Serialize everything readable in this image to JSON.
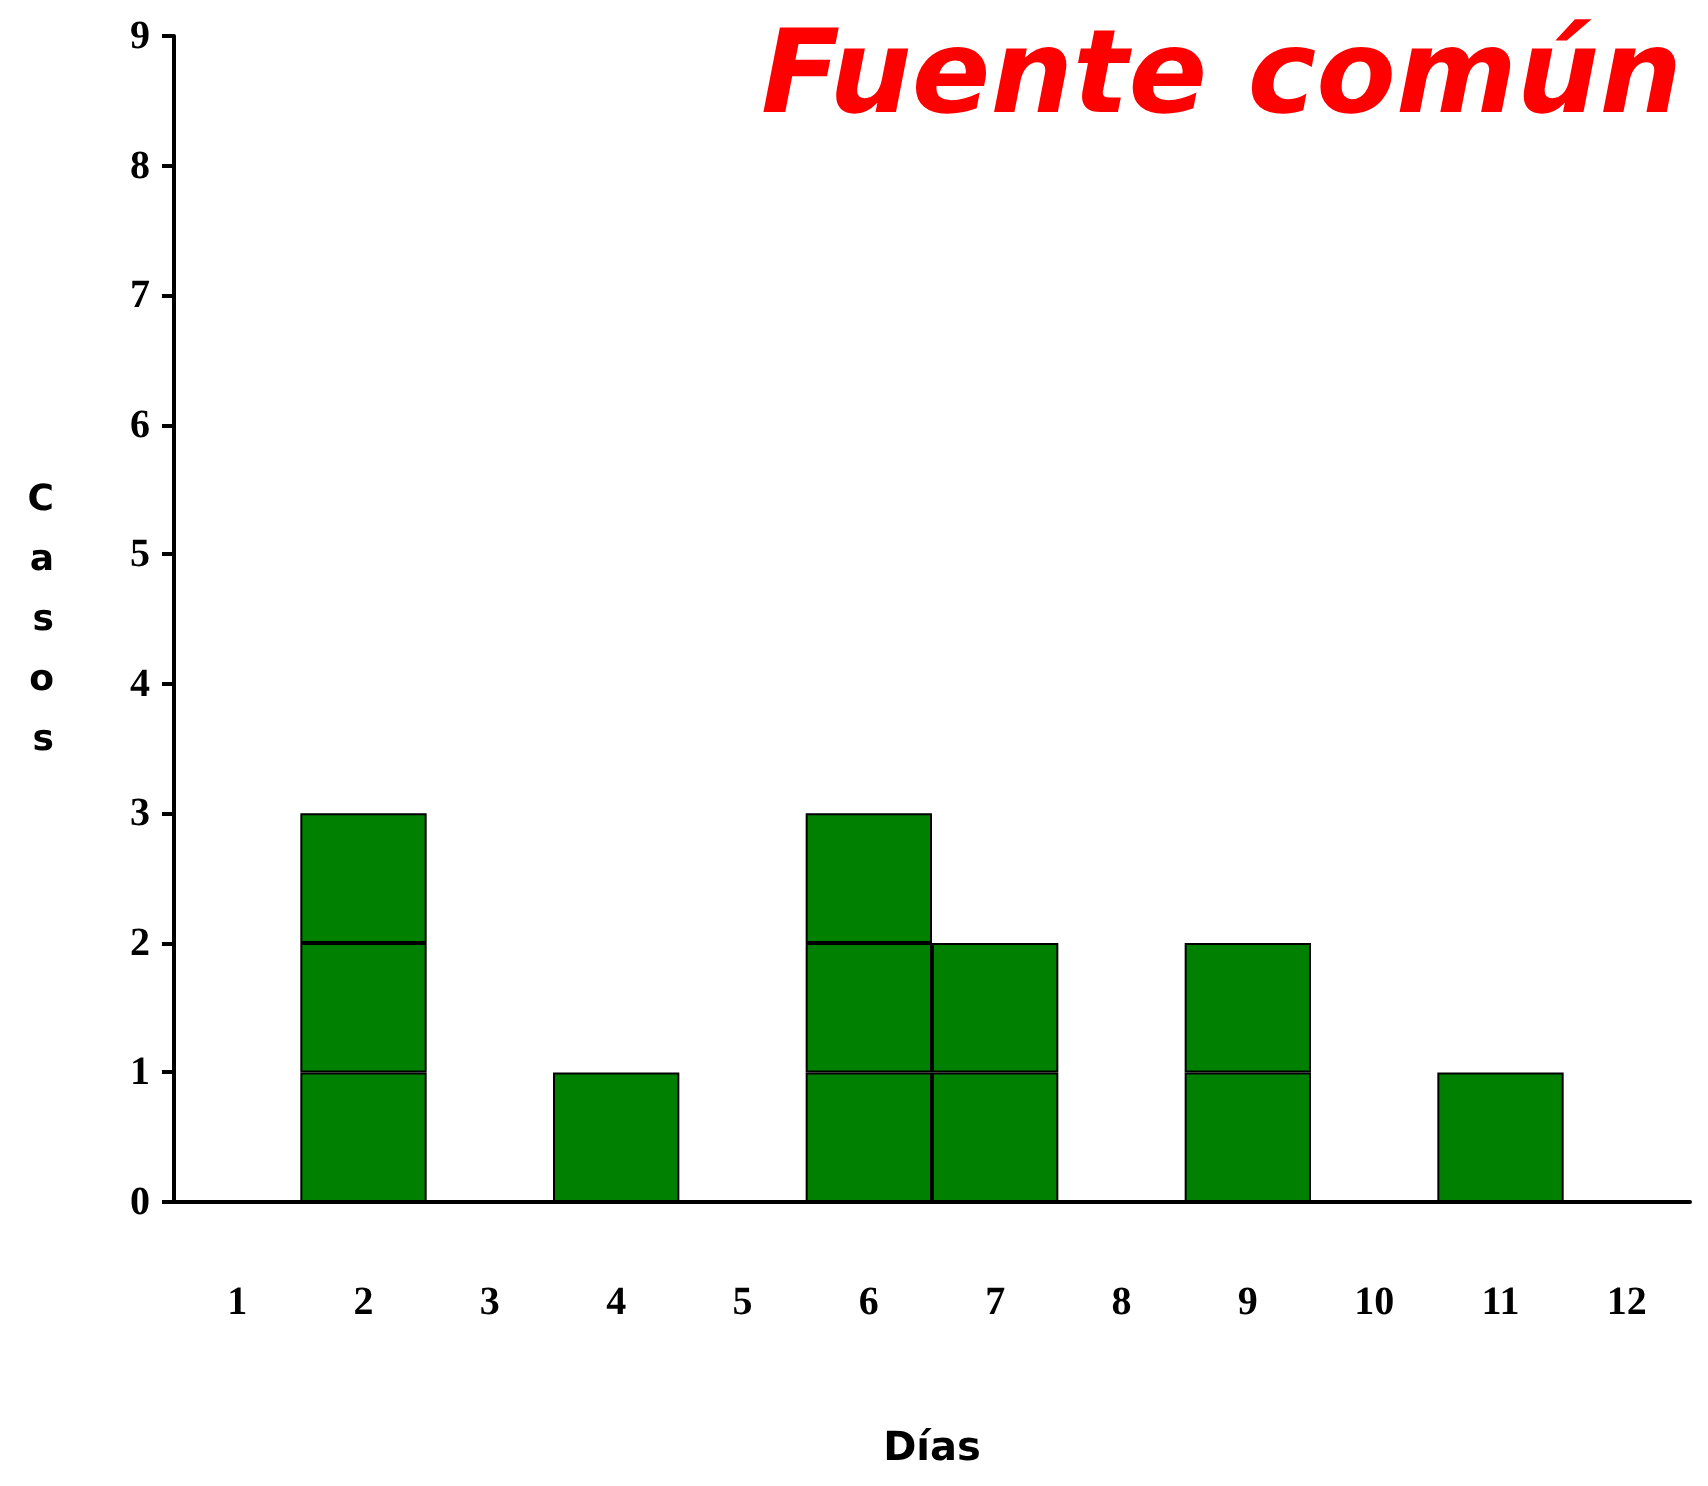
{
  "chart_data": {
    "type": "bar",
    "title": "Fuente común",
    "xlabel": "Días",
    "ylabel": "Casos",
    "categories": [
      "1",
      "2",
      "3",
      "4",
      "5",
      "6",
      "7",
      "8",
      "9",
      "10",
      "11",
      "12"
    ],
    "series": [
      {
        "color": "#008000",
        "values": [
          null,
          1,
          null,
          1,
          null,
          1,
          1,
          null,
          1,
          null,
          1,
          null
        ]
      },
      {
        "color": "#008000",
        "values": [
          null,
          1,
          null,
          null,
          null,
          1,
          1,
          null,
          1,
          null,
          null,
          null
        ]
      },
      {
        "color": "#008000",
        "values": [
          null,
          1,
          null,
          null,
          null,
          1,
          null,
          null,
          null,
          null,
          null,
          null
        ]
      }
    ],
    "stacked": true,
    "ylim": [
      0,
      9
    ],
    "yticks": [
      0,
      1,
      2,
      3,
      4,
      5,
      6,
      7,
      8,
      9
    ],
    "grid": false
  }
}
